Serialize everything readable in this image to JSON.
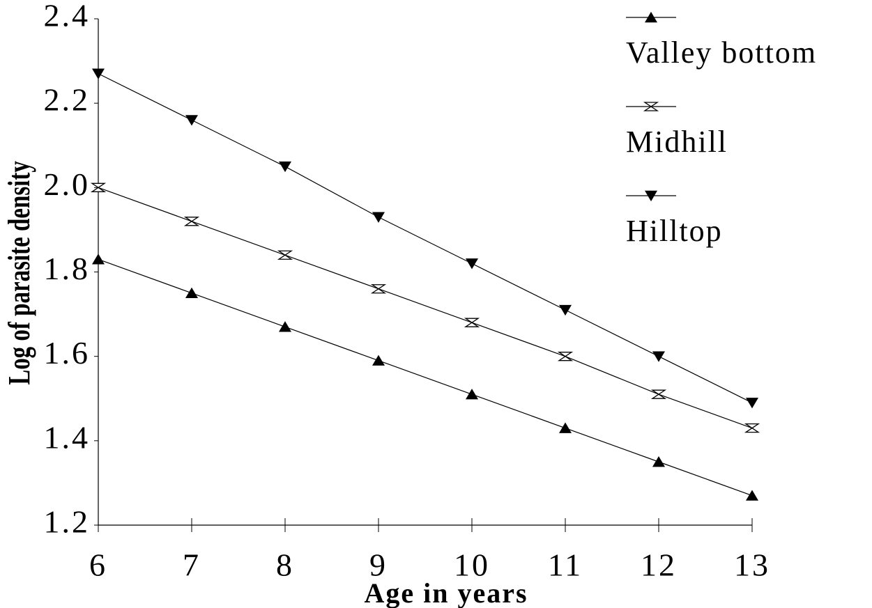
{
  "chart_data": {
    "type": "line",
    "x_label": "Age in years",
    "y_label": "Log of parasite density",
    "x": [
      6,
      7,
      8,
      9,
      10,
      11,
      12,
      13
    ],
    "series": [
      {
        "name": "Valley bottom",
        "color": "#000000",
        "marker": "triangle-up",
        "values": [
          1.83,
          1.75,
          1.67,
          1.59,
          1.51,
          1.43,
          1.35,
          1.27
        ]
      },
      {
        "name": "Midhill",
        "color": "#000000",
        "marker": "hourglass",
        "values": [
          2.0,
          1.92,
          1.84,
          1.76,
          1.68,
          1.6,
          1.51,
          1.43
        ]
      },
      {
        "name": "Hilltop",
        "color": "#000000",
        "marker": "triangle-down",
        "values": [
          2.27,
          2.16,
          2.05,
          1.93,
          1.82,
          1.71,
          1.6,
          1.49
        ]
      }
    ],
    "xlim": [
      6,
      13
    ],
    "xticks": [
      6,
      7,
      8,
      9,
      10,
      11,
      12,
      13
    ],
    "ylim": [
      1.2,
      2.4
    ],
    "yticks": [
      {
        "value": 1.2,
        "label": "1.2"
      },
      {
        "value": 1.4,
        "label": "1.4"
      },
      {
        "value": 1.6,
        "label": "1.6"
      },
      {
        "value": 1.8,
        "label": "1.8"
      },
      {
        "value": 2.0,
        "label": "2.0"
      },
      {
        "value": 2.2,
        "label": "2.2"
      },
      {
        "value": 2.4,
        "label": "2.4"
      }
    ],
    "legend": "top-right"
  }
}
